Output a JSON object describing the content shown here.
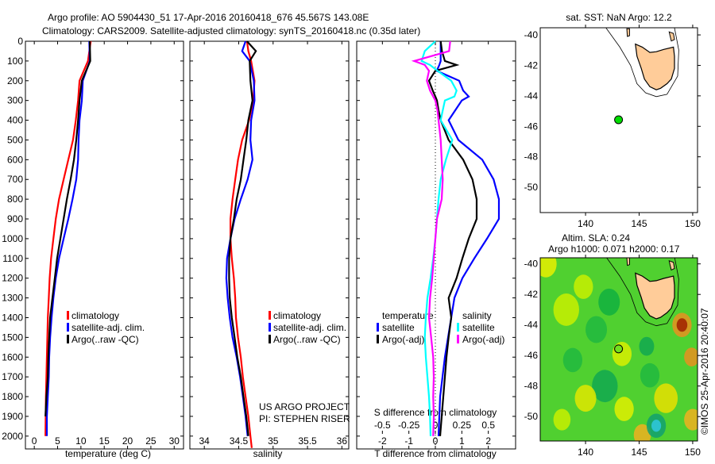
{
  "header": {
    "title_line1": "Argo profile: AO 5904430_51 17-Apr-2016 20160418_676 45.567S 143.08E",
    "title_line2": "Climatology: CARS2009. Satellite-adjusted climatology: synTS_20160418.nc (0.35d later)"
  },
  "colors": {
    "climatology": "#ff0000",
    "satellite": "#0000ff",
    "argo": "#000000",
    "sal_satellite": "#00ffff",
    "sal_argo": "#ff00ff",
    "land": "#ffcc99",
    "point": "#00dd00"
  },
  "chart_data": [
    {
      "type": "line",
      "id": "temperature",
      "xlabel": "temperature (deg C)",
      "ylabel": "",
      "xlim": [
        -1.9,
        32
      ],
      "ylim": [
        2065,
        0
      ],
      "xticks": [
        0,
        5,
        10,
        15,
        20,
        25,
        30
      ],
      "xtick_labels": [
        "0",
        "5",
        "10",
        "15",
        "20",
        "25",
        "30"
      ],
      "yticks": [
        0,
        100,
        200,
        300,
        400,
        500,
        600,
        700,
        800,
        900,
        1000,
        1100,
        1200,
        1300,
        1400,
        1500,
        1600,
        1700,
        1800,
        1900,
        2000
      ],
      "ytick_labels": [
        "0",
        "100",
        "200",
        "300",
        "400",
        "500",
        "600",
        "700",
        "800",
        "900",
        "1000",
        "1100",
        "1200",
        "1300",
        "1400",
        "1500",
        "1600",
        "1700",
        "1800",
        "1900",
        "2000"
      ],
      "legend": [
        "climatology",
        "satellite-adj. clim.",
        "Argo(..raw -QC)"
      ],
      "depth": [
        0,
        100,
        200,
        300,
        400,
        500,
        600,
        700,
        800,
        900,
        1000,
        1100,
        1200,
        1300,
        1400,
        1500,
        1600,
        1700,
        1800,
        1900,
        2000
      ],
      "series": [
        {
          "name": "climatology",
          "color": "#ff0000",
          "values": [
            12.1,
            11.5,
            9.7,
            9.4,
            8.9,
            8.3,
            7.3,
            6.3,
            5.3,
            4.6,
            4.1,
            3.6,
            3.3,
            3.1,
            2.9,
            2.8,
            2.7,
            2.6,
            2.5,
            2.45,
            2.4
          ]
        },
        {
          "name": "satellite-adj. clim.",
          "color": "#0000ff",
          "values": [
            11.8,
            11.9,
            10.4,
            10.2,
            9.7,
            9.5,
            9.4,
            9.0,
            8.2,
            7.3,
            6.3,
            5.3,
            4.6,
            4.1,
            3.7,
            3.4,
            3.2,
            3.1,
            2.9,
            2.7,
            2.7
          ]
        },
        {
          "name": "Argo(..raw -QC)",
          "color": "#000000",
          "values": [
            11.9,
            12.0,
            10.2,
            9.7,
            9.4,
            9.0,
            8.5,
            7.8,
            7.0,
            6.3,
            5.6,
            4.9,
            4.4,
            3.9,
            3.4,
            3.2,
            3.0,
            2.9,
            2.6,
            2.4,
            null
          ]
        }
      ]
    },
    {
      "type": "line",
      "id": "salinity",
      "xlabel": "salinity",
      "xlim": [
        33.79,
        36.1
      ],
      "ylim": [
        2065,
        0
      ],
      "xticks": [
        34,
        34.5,
        35,
        35.5,
        36
      ],
      "xtick_labels": [
        "34",
        "34.5",
        "35",
        "35.5",
        "36"
      ],
      "legend": [
        "climatology",
        "satellite-adj. clim.",
        "Argo(..raw -QC)"
      ],
      "annotations": [
        "US ARGO PROJECT",
        "PI: STEPHEN RISER"
      ],
      "depth": [
        0,
        50,
        100,
        200,
        300,
        400,
        500,
        600,
        700,
        800,
        900,
        1000,
        1100,
        1200,
        1300,
        1400,
        1500,
        1600,
        1700,
        1800,
        1900,
        2000,
        2060
      ],
      "series": [
        {
          "name": "climatology",
          "color": "#ff0000",
          "values": [
            34.62,
            34.64,
            34.68,
            34.73,
            34.71,
            34.65,
            34.55,
            34.49,
            34.45,
            34.41,
            34.38,
            34.38,
            34.4,
            34.43,
            34.45,
            34.46,
            34.49,
            34.53,
            34.56,
            34.6,
            34.64,
            34.67,
            34.69
          ]
        },
        {
          "name": "satellite-adj. clim.",
          "color": "#0000ff",
          "values": [
            34.6,
            34.55,
            34.66,
            34.72,
            34.73,
            34.68,
            34.67,
            34.7,
            34.63,
            34.53,
            34.44,
            34.38,
            34.33,
            34.32,
            34.34,
            34.37,
            34.41,
            34.47,
            34.52,
            34.56,
            34.6,
            34.63,
            null
          ]
        },
        {
          "name": "Argo(..raw -QC)",
          "color": "#000000",
          "values": [
            34.62,
            34.75,
            34.66,
            34.67,
            34.7,
            34.64,
            34.61,
            34.57,
            34.53,
            34.47,
            34.43,
            34.38,
            34.36,
            34.36,
            34.37,
            34.4,
            34.44,
            34.48,
            34.53,
            34.57,
            34.61,
            34.64,
            null
          ]
        }
      ]
    },
    {
      "type": "line",
      "id": "difference",
      "xlabel": "T difference from climatology",
      "x2label": "S difference from climatology",
      "xlim": [
        -2.97,
        3.03
      ],
      "ylim": [
        2065,
        0
      ],
      "xticks": [
        -2,
        -1,
        0,
        1,
        2
      ],
      "xtick_labels": [
        "-2",
        "-1",
        "0",
        "1",
        "2"
      ],
      "x2ticks": [
        -0.5,
        -0.25,
        0,
        0.25,
        0.5
      ],
      "x2tick_labels": [
        "-0.5",
        "-0.25",
        "0",
        "0.25",
        "0.5"
      ],
      "legend_temperature_title": "temperature",
      "legend_salinity_title": "salinity",
      "legend": [
        "satellite",
        "Argo(-adj)",
        "satellite",
        "Argo(-adj)"
      ],
      "depth": [
        0,
        50,
        100,
        120,
        150,
        200,
        250,
        280,
        300,
        350,
        400,
        500,
        600,
        700,
        800,
        900,
        1000,
        1100,
        1200,
        1300,
        1400,
        1500,
        1600,
        1700,
        1800,
        1900,
        2000
      ],
      "series": [
        {
          "name": "T satellite",
          "color": "#0000ff",
          "axis": "T",
          "values": [
            0.2,
            0.2,
            0.2,
            0.15,
            0.05,
            0.9,
            1.05,
            1.26,
            1.0,
            0.75,
            0.5,
            0.87,
            1.77,
            2.2,
            2.4,
            2.4,
            1.95,
            1.47,
            1.02,
            0.72,
            0.6,
            0.48,
            0.36,
            0.27,
            0.18,
            0.15,
            0.12
          ]
        },
        {
          "name": "T Argo(-adj)",
          "color": "#000000",
          "axis": "T",
          "values": [
            0.2,
            0.25,
            0.36,
            0.8,
            0.0,
            -0.24,
            -0.1,
            0.0,
            0.06,
            0.12,
            0.2,
            0.5,
            1.05,
            1.4,
            1.56,
            1.56,
            1.26,
            1.02,
            0.8,
            0.5,
            0.6,
            0.5,
            0.42,
            0.36,
            0.3,
            0.24,
            0.18
          ]
        },
        {
          "name": "S satellite",
          "color": "#00ffff",
          "axis": "S",
          "values": [
            0.0,
            -0.1,
            -0.13,
            -0.05,
            0.02,
            0.15,
            0.2,
            0.18,
            0.09,
            0.07,
            0.05,
            0.16,
            0.1,
            0.05,
            0.03,
            0.015,
            0.0,
            -0.02,
            -0.045,
            -0.075,
            -0.09,
            -0.1,
            -0.09,
            -0.075,
            -0.06,
            -0.05,
            -0.045
          ]
        },
        {
          "name": "S Argo(-adj)",
          "color": "#ff00ff",
          "axis": "S",
          "values": [
            0.14,
            0.13,
            -0.2,
            -0.1,
            -0.06,
            -0.08,
            -0.05,
            -0.02,
            0.0,
            0.02,
            0.03,
            0.05,
            0.06,
            0.07,
            0.06,
            0.015,
            0.0,
            -0.015,
            -0.03,
            -0.05,
            -0.06,
            -0.04,
            -0.02,
            -0.015,
            -0.02,
            -0.015,
            -0.02
          ]
        }
      ]
    },
    {
      "type": "map",
      "id": "sst_map",
      "title": "sat. SST: NaN Argo: 12.2",
      "xlim": [
        135.77,
        150.45
      ],
      "ylim": [
        -51.66,
        -39.53
      ],
      "xticks": [
        140,
        145,
        150
      ],
      "xtick_labels": [
        "140",
        "145",
        "150"
      ],
      "yticks": [
        -40,
        -42,
        -44,
        -46,
        -48,
        -50
      ],
      "ytick_labels": [
        "-40",
        "-42",
        "-44",
        "-46",
        "-48",
        "-50"
      ],
      "argo_position": {
        "lon": 143.08,
        "lat": -45.567
      }
    },
    {
      "type": "heatmap",
      "id": "sla_map",
      "title_line1": "Altim. SLA: 0.24",
      "title_line2": "Argo h1000: 0.071 h2000: 0.17",
      "side_label": "©IMOS 25-Apr-2016 20:40:07",
      "xlim": [
        135.77,
        150.45
      ],
      "ylim": [
        -51.6,
        -39.6
      ],
      "xticks": [
        140,
        145,
        150
      ],
      "xtick_labels": [
        "140",
        "145",
        "150"
      ],
      "yticks": [
        -40,
        -42,
        -44,
        -46,
        -48,
        -50
      ],
      "ytick_labels": [
        "-40",
        "-42",
        "-44",
        "-46",
        "-48",
        "-50"
      ],
      "argo_position": {
        "lon": 143.08,
        "lat": -45.567
      },
      "anomaly_blobs": [
        {
          "lon": 136.3,
          "lat": -40.0,
          "r": 1.0,
          "color": "#e8f000"
        },
        {
          "lon": 138.2,
          "lat": -43.0,
          "r": 1.2,
          "color": "#c8f000"
        },
        {
          "lon": 139.8,
          "lat": -41.5,
          "r": 0.9,
          "color": "#c8f000"
        },
        {
          "lon": 142.2,
          "lat": -42.5,
          "r": 1.0,
          "color": "#10b040"
        },
        {
          "lon": 141.0,
          "lat": -44.3,
          "r": 1.0,
          "color": "#20b840"
        },
        {
          "lon": 138.8,
          "lat": -46.3,
          "r": 0.9,
          "color": "#20b840"
        },
        {
          "lon": 145.7,
          "lat": -45.4,
          "r": 0.7,
          "color": "#10a850"
        },
        {
          "lon": 141.8,
          "lat": -48.0,
          "r": 1.2,
          "color": "#10a850"
        },
        {
          "lon": 146.0,
          "lat": -47.3,
          "r": 0.9,
          "color": "#20b840"
        },
        {
          "lon": 143.4,
          "lat": -45.9,
          "r": 0.9,
          "color": "#d8f000"
        },
        {
          "lon": 140.0,
          "lat": -48.8,
          "r": 1.0,
          "color": "#e0e800"
        },
        {
          "lon": 147.5,
          "lat": -48.8,
          "r": 1.1,
          "color": "#e8e000"
        },
        {
          "lon": 143.6,
          "lat": -49.5,
          "r": 0.9,
          "color": "#e0f000"
        },
        {
          "lon": 149.0,
          "lat": -44.0,
          "r": 0.9,
          "color": "#e89020"
        },
        {
          "lon": 149.0,
          "lat": -44.0,
          "r": 0.5,
          "color": "#a02000"
        },
        {
          "lon": 149.9,
          "lat": -46.1,
          "r": 0.7,
          "color": "#e89020"
        },
        {
          "lon": 150.0,
          "lat": -50.2,
          "r": 0.8,
          "color": "#f0b020"
        },
        {
          "lon": 145.3,
          "lat": -51.2,
          "r": 0.8,
          "color": "#f0b020"
        },
        {
          "lon": 146.6,
          "lat": -50.6,
          "r": 0.9,
          "color": "#10a070"
        },
        {
          "lon": 146.6,
          "lat": -50.6,
          "r": 0.45,
          "color": "#30c8e0"
        },
        {
          "lon": 137.8,
          "lat": -50.2,
          "r": 0.8,
          "color": "#c8f000"
        }
      ]
    }
  ],
  "geography": {
    "tasmania": [
      [
        144.65,
        -40.6
      ],
      [
        145.3,
        -40.8
      ],
      [
        146.0,
        -41.15
      ],
      [
        146.6,
        -41.1
      ],
      [
        147.3,
        -40.95
      ],
      [
        148.2,
        -40.8
      ],
      [
        148.3,
        -41.4
      ],
      [
        148.3,
        -42.2
      ],
      [
        148.0,
        -42.9
      ],
      [
        147.6,
        -43.2
      ],
      [
        147.0,
        -43.5
      ],
      [
        146.6,
        -43.6
      ],
      [
        146.0,
        -43.4
      ],
      [
        145.5,
        -42.9
      ],
      [
        145.2,
        -42.2
      ],
      [
        144.8,
        -41.4
      ]
    ],
    "king_island": [
      [
        143.85,
        -39.6
      ],
      [
        144.1,
        -39.6
      ],
      [
        144.1,
        -40.05
      ],
      [
        143.9,
        -40.1
      ]
    ],
    "flinders_island": [
      [
        147.8,
        -39.8
      ],
      [
        148.2,
        -39.9
      ],
      [
        148.3,
        -40.3
      ],
      [
        148.0,
        -40.4
      ],
      [
        147.9,
        -40.1
      ]
    ],
    "shelf_contour": [
      [
        141.9,
        -39.53
      ],
      [
        143.2,
        -40.8
      ],
      [
        144.2,
        -42.0
      ],
      [
        144.8,
        -43.2
      ],
      [
        145.6,
        -43.8
      ],
      [
        146.6,
        -44.05
      ],
      [
        147.6,
        -43.9
      ],
      [
        148.6,
        -42.7
      ],
      [
        148.7,
        -41.0
      ],
      [
        148.3,
        -39.53
      ]
    ]
  }
}
